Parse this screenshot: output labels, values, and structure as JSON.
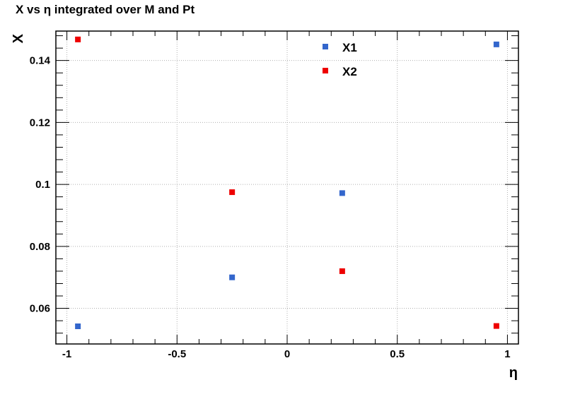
{
  "chart_data": {
    "type": "scatter",
    "title": "X vs η integrated over M and Pt",
    "xlabel": "η",
    "ylabel": "X",
    "xlim": [
      -1.05,
      1.05
    ],
    "ylim": [
      0.0485,
      0.1495
    ],
    "xticks": [
      -1,
      -0.5,
      0,
      0.5,
      1
    ],
    "xtick_labels": [
      "-1",
      "-0.5",
      "0",
      "0.5",
      "1"
    ],
    "yticks": [
      0.06,
      0.08,
      0.1,
      0.12,
      0.14
    ],
    "ytick_labels": [
      "0.06",
      "0.08",
      "0.1",
      "0.12",
      "0.14"
    ],
    "grid": true,
    "legend_position": "top-center",
    "series": [
      {
        "name": "X1",
        "color": "#3366cc",
        "x": [
          -0.95,
          -0.25,
          0.25,
          0.95
        ],
        "y": [
          0.0542,
          0.07,
          0.0972,
          0.1452
        ],
        "yerr": [
          0.0006,
          0.0007,
          0.0007,
          0.0008
        ]
      },
      {
        "name": "X2",
        "color": "#ee0000",
        "x": [
          -0.95,
          -0.25,
          0.25,
          0.95
        ],
        "y": [
          0.1468,
          0.0975,
          0.072,
          0.0543
        ],
        "yerr": [
          0.0008,
          0.0007,
          0.0006,
          0.0006
        ]
      }
    ]
  }
}
